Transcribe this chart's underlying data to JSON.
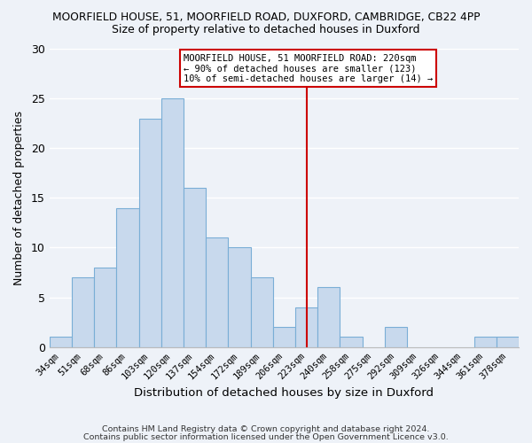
{
  "title_main": "MOORFIELD HOUSE, 51, MOORFIELD ROAD, DUXFORD, CAMBRIDGE, CB22 4PP",
  "title_sub": "Size of property relative to detached houses in Duxford",
  "xlabel": "Distribution of detached houses by size in Duxford",
  "ylabel": "Number of detached properties",
  "bin_labels": [
    "34sqm",
    "51sqm",
    "68sqm",
    "86sqm",
    "103sqm",
    "120sqm",
    "137sqm",
    "154sqm",
    "172sqm",
    "189sqm",
    "206sqm",
    "223sqm",
    "240sqm",
    "258sqm",
    "275sqm",
    "292sqm",
    "309sqm",
    "326sqm",
    "344sqm",
    "361sqm",
    "378sqm"
  ],
  "bar_heights": [
    1,
    7,
    8,
    14,
    23,
    25,
    16,
    11,
    10,
    7,
    2,
    4,
    6,
    1,
    0,
    2,
    0,
    0,
    0,
    1,
    1
  ],
  "bar_color": "#c8d9ed",
  "bar_edge_color": "#7aaed6",
  "vline_x": 11,
  "vline_color": "#cc0000",
  "annotation_title": "MOORFIELD HOUSE, 51 MOORFIELD ROAD: 220sqm",
  "annotation_line1": "← 90% of detached houses are smaller (123)",
  "annotation_line2": "10% of semi-detached houses are larger (14) →",
  "annotation_box_color": "#ffffff",
  "annotation_box_edge": "#cc0000",
  "ylim": [
    0,
    30
  ],
  "yticks": [
    0,
    5,
    10,
    15,
    20,
    25,
    30
  ],
  "footer1": "Contains HM Land Registry data © Crown copyright and database right 2024.",
  "footer2": "Contains public sector information licensed under the Open Government Licence v3.0.",
  "background_color": "#eef2f8",
  "grid_color": "#ffffff"
}
